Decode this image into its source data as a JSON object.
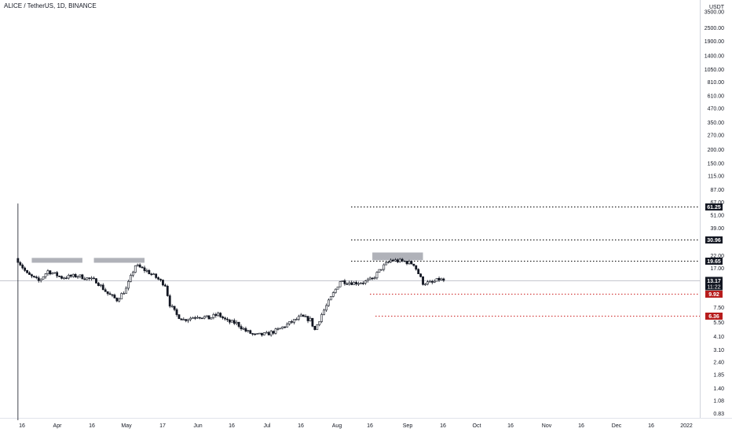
{
  "header": {
    "title": "ALICE / TetherUS, 1D, BINANCE"
  },
  "chart_data": {
    "type": "candlestick",
    "title": "ALICE / TetherUS, 1D, BINANCE",
    "y_scale": "log",
    "y_unit": "USDT",
    "last_price": "13.17",
    "countdown": "11:22",
    "y_ticks": [
      "3500.00",
      "2500.00",
      "1900.00",
      "1400.00",
      "1050.00",
      "810.00",
      "610.00",
      "470.00",
      "350.00",
      "270.00",
      "200.00",
      "150.00",
      "115.00",
      "87.00",
      "67.00",
      "51.00",
      "39.00",
      "22.00",
      "17.00",
      "7.50",
      "5.50",
      "4.10",
      "3.10",
      "2.40",
      "1.85",
      "1.40",
      "1.08",
      "0.83"
    ],
    "x_ticks": [
      "16",
      "Apr",
      "16",
      "May",
      "17",
      "Jun",
      "16",
      "Jul",
      "16",
      "Aug",
      "16",
      "Sep",
      "16",
      "Oct",
      "16",
      "Nov",
      "16",
      "Dec",
      "16",
      "2022"
    ],
    "levels": [
      {
        "label": "61.25",
        "value": 61.25,
        "style": "dotted",
        "color": "#000000",
        "badge": "#131722"
      },
      {
        "label": "30.96",
        "value": 30.96,
        "style": "dotted",
        "color": "#000000",
        "badge": "#131722"
      },
      {
        "label": "19.65",
        "value": 19.65,
        "style": "dotted",
        "color": "#000000",
        "badge": "#131722"
      },
      {
        "label": "9.92",
        "value": 9.92,
        "style": "dotted",
        "color": "#cc2222",
        "badge": "#b71c1c"
      },
      {
        "label": "6.36",
        "value": 6.36,
        "style": "dotted",
        "color": "#cc2222",
        "badge": "#b71c1c"
      }
    ],
    "zones": [
      {
        "x_start": "2021-03-21",
        "x_end": "2021-04-12",
        "low": 19.0,
        "high": 21.0
      },
      {
        "x_start": "2021-04-17",
        "x_end": "2021-05-09",
        "low": 19.0,
        "high": 21.0
      },
      {
        "x_start": "2021-08-16",
        "x_end": "2021-09-07",
        "low": 20.0,
        "high": 23.5
      }
    ],
    "candle_color": "#131722",
    "price_path": [
      [
        "2021-03-15",
        20
      ],
      [
        "2021-03-19",
        15
      ],
      [
        "2021-03-24",
        13
      ],
      [
        "2021-03-28",
        16
      ],
      [
        "2021-04-03",
        14
      ],
      [
        "2021-04-10",
        14.5
      ],
      [
        "2021-04-18",
        13
      ],
      [
        "2021-04-23",
        10
      ],
      [
        "2021-04-27",
        8.8
      ],
      [
        "2021-05-01",
        11
      ],
      [
        "2021-05-05",
        18
      ],
      [
        "2021-05-10",
        16
      ],
      [
        "2021-05-14",
        14
      ],
      [
        "2021-05-18",
        12
      ],
      [
        "2021-05-20",
        8
      ],
      [
        "2021-05-23",
        6.4
      ],
      [
        "2021-05-26",
        5.8
      ],
      [
        "2021-06-01",
        6.3
      ],
      [
        "2021-06-06",
        6.0
      ],
      [
        "2021-06-10",
        6.5
      ],
      [
        "2021-06-14",
        5.6
      ],
      [
        "2021-06-18",
        5.4
      ],
      [
        "2021-06-22",
        4.6
      ],
      [
        "2021-06-26",
        4.2
      ],
      [
        "2021-07-01",
        4.3
      ],
      [
        "2021-07-06",
        4.7
      ],
      [
        "2021-07-11",
        5.4
      ],
      [
        "2021-07-16",
        6.2
      ],
      [
        "2021-07-20",
        5.8
      ],
      [
        "2021-07-22",
        4.7
      ],
      [
        "2021-07-25",
        6.5
      ],
      [
        "2021-07-30",
        10
      ],
      [
        "2021-08-02",
        13
      ],
      [
        "2021-08-08",
        12.5
      ],
      [
        "2021-08-13",
        12.8
      ],
      [
        "2021-08-16",
        13.5
      ],
      [
        "2021-08-20",
        17
      ],
      [
        "2021-08-24",
        20
      ],
      [
        "2021-08-30",
        19.5
      ],
      [
        "2021-09-03",
        18.5
      ],
      [
        "2021-09-07",
        12.5
      ],
      [
        "2021-09-11",
        12.5
      ],
      [
        "2021-09-14",
        13.5
      ],
      [
        "2021-09-16",
        13.17
      ]
    ],
    "spike_date": "2021-03-15",
    "spike_low": 0.72,
    "spike_high": 65,
    "x_range": [
      "2021-03-13",
      "2022-01-03"
    ],
    "y_range": [
      0.72,
      4050
    ]
  }
}
